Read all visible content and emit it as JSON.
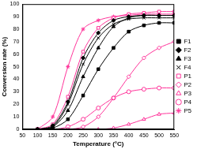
{
  "chart_data": {
    "type": "line",
    "x_label": "Temperature (°C)",
    "y_label": "Conversion rate (%)",
    "x": [
      100,
      150,
      200,
      250,
      300,
      350,
      400,
      450,
      500,
      550
    ],
    "series": [
      {
        "name": "F1",
        "color": "#000000",
        "marker": "square",
        "values": [
          0,
          1,
          8,
          27,
          48,
          65,
          78,
          83,
          85,
          85
        ]
      },
      {
        "name": "F2",
        "color": "#000000",
        "marker": "diamond",
        "values": [
          0,
          3,
          22,
          57,
          77,
          87,
          90,
          91,
          91,
          91
        ]
      },
      {
        "name": "F3",
        "color": "#000000",
        "marker": "triangle",
        "values": [
          0,
          2,
          15,
          42,
          65,
          82,
          89,
          91,
          91,
          91
        ]
      },
      {
        "name": "F4",
        "color": "#000000",
        "marker": "x",
        "values": [
          0,
          2,
          20,
          52,
          73,
          84,
          88,
          89,
          89,
          89
        ]
      },
      {
        "name": "P1",
        "color": "#ff3399",
        "marker": "open_square",
        "values": [
          0,
          4,
          26,
          62,
          81,
          89,
          92,
          93,
          94,
          94
        ]
      },
      {
        "name": "P2",
        "color": "#ff3399",
        "marker": "open_diamond",
        "values": [
          0,
          0,
          0,
          2,
          10,
          25,
          42,
          57,
          65,
          70
        ]
      },
      {
        "name": "P3",
        "color": "#ff3399",
        "marker": "open_triangle",
        "values": [
          0,
          0,
          0,
          0,
          0,
          1,
          4,
          8,
          12,
          13
        ]
      },
      {
        "name": "P4",
        "color": "#ff3399",
        "marker": "open_circle",
        "values": [
          0,
          0,
          2,
          8,
          17,
          25,
          30,
          32,
          33,
          33
        ]
      },
      {
        "name": "P5",
        "color": "#ff3399",
        "marker": "star",
        "values": [
          0,
          10,
          50,
          80,
          87,
          90,
          91,
          92,
          92,
          92
        ]
      }
    ],
    "xlim": [
      50,
      550
    ],
    "xticks": [
      50,
      100,
      150,
      200,
      250,
      300,
      350,
      400,
      450,
      500,
      550
    ],
    "ylim": [
      0,
      100
    ],
    "yticks": [
      0,
      10,
      20,
      30,
      40,
      50,
      60,
      70,
      80,
      90,
      100
    ],
    "grid": false,
    "legend": "right"
  }
}
